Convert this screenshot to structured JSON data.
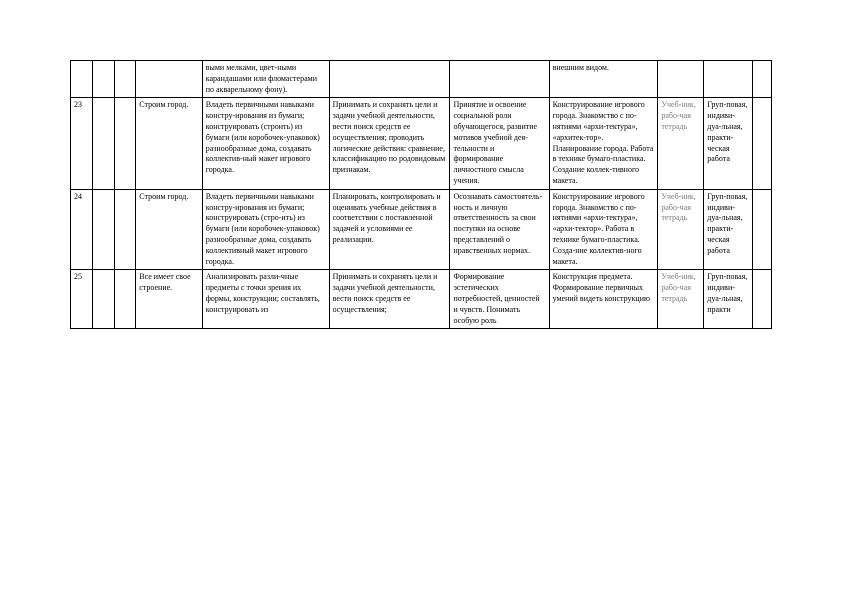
{
  "rows": [
    {
      "n": "",
      "a": "",
      "b": "",
      "topic": "",
      "col4": "выми мелками, цвет-ными карандашами или фломастерами по акварельному фону).",
      "col5": "",
      "col6": "",
      "col7": "внешним видом.",
      "col8": "",
      "col9": "",
      "col10": ""
    },
    {
      "n": "23",
      "a": "",
      "b": "",
      "topic": "Строим город.",
      "col4": "Владеть первичными навыками констру-ирования из бумаги; конструировать (строить) из бумаги (или коробочек-упаковок) разнообразные дома, создавать коллектив-ный макет игрового городка.",
      "col5": "Принимать и сохранять цели и задачи учебной деятельности, вести поиск средств ее осуществления; проводить логические действия: сравнение, классификацию по родовидовым признакам.",
      "col6": "Принятие и освоение социальной роли обучающегося, развитие мотивов учебной дея-тельности и формирование личностного смысла учения.",
      "col7": "Конструирование игрового города. Знакомство с по-нятиями «архи-тектура», «архитек-тор». Планирование города. Работа в технике бумаго-пластика. Создание коллек-тивного макета.",
      "col8": "Учеб-ник, рабо-чая тетрадь",
      "col9": "Груп-повая, индиви-дуа-льная, практи-ческая работа",
      "col10": ""
    },
    {
      "n": "24",
      "a": "",
      "b": "",
      "topic": "Строим город.",
      "col4": "Владеть первичными навыками констру-ирования из бумаги; конструировать (стро-ить) из бумаги (или коробочек-упаковок) разнообразные дома, создавать коллективный макет игрового городка.",
      "col5": "Планировать, контролировать и оценивать учебные действия в соответствии с поставленной задачей и условиями ее реализации.",
      "col6": "Осознавать самостоятель-ность и личную ответственность за свои поступки на основе представлений о нравственных нормах.",
      "col7": "Конструирование игрового города. Знакомство с по-нятиями «архи-тектура», «архи-тектор». Работа в технике бумаго-пластика. Созда-ние коллектив-ного макета.",
      "col8": "Учеб-ник, рабо-чая тетрадь",
      "col9": "Груп-повая, индиви-дуа-льная, практи-ческая работа",
      "col10": ""
    },
    {
      "n": "25",
      "a": "",
      "b": "",
      "topic": "Все имеет свое строение.",
      "col4": "Анализировать разли-чные предметы с точки зрения их формы, конструкции; составлять, конструировать из",
      "col5": "Принимать и сохранять цели и задачи учебной деятельности, вести поиск средств ее осуществления;",
      "col6": "Формирование эстетических потребностей, ценностей и чувств. Понимать особую роль",
      "col7": "Конструкция предмета. Формирование первичных умений видеть конструкцию",
      "col8": "Учеб-ник, рабо-чая тетрадь",
      "col9": "Груп-повая, индиви-дуа-льная, практи",
      "col10": ""
    }
  ]
}
